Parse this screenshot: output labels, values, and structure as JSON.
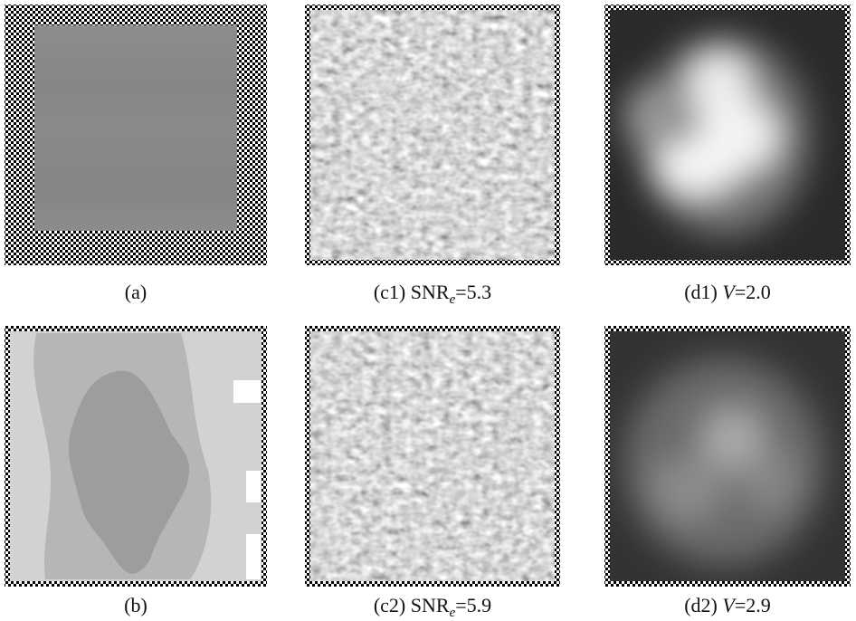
{
  "figure": {
    "panels": [
      {
        "label": "(a)"
      },
      {
        "label": "(c1)",
        "metric": "SNR",
        "subscript": "e",
        "value": "=5.3"
      },
      {
        "label": "(d1)",
        "metric": "V",
        "value": "=2.0"
      },
      {
        "label": "(b)"
      },
      {
        "label": "(c2)",
        "metric": "SNR",
        "subscript": "e",
        "value": "=5.9"
      },
      {
        "label": "(d2)",
        "metric": "V",
        "value": "=2.9"
      }
    ]
  }
}
